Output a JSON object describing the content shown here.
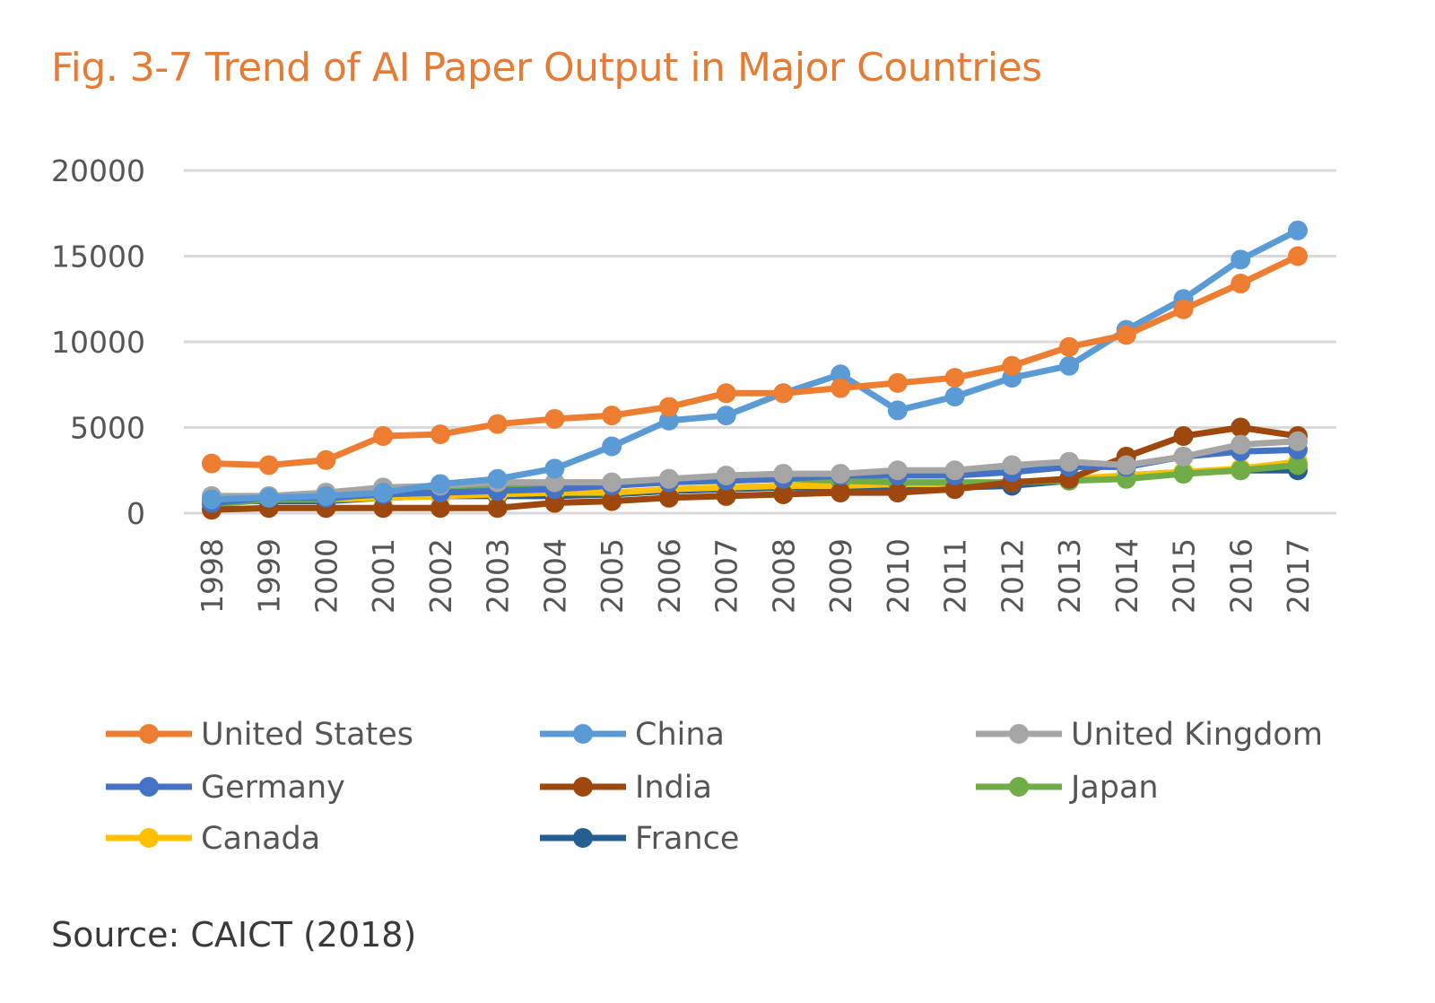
{
  "title": "Fig. 3-7 Trend of AI Paper Output in Major Countries",
  "source": "Source: CAICT (2018)",
  "chart_data": {
    "type": "line",
    "title": "Fig. 3-7 Trend of AI Paper Output in Major Countries",
    "xlabel": "",
    "ylabel": "",
    "x": [
      "1998",
      "1999",
      "2000",
      "2001",
      "2002",
      "2003",
      "2004",
      "2005",
      "2006",
      "2007",
      "2008",
      "2009",
      "2010",
      "2011",
      "2012",
      "2013",
      "2014",
      "2015",
      "2016",
      "2017"
    ],
    "ylim": [
      0,
      20000
    ],
    "yticks": [
      "0",
      "5000",
      "10000",
      "15000",
      "20000"
    ],
    "grid": true,
    "legend_position": "bottom",
    "series": [
      {
        "name": "United States",
        "color": "#ED7D31",
        "values": [
          2900,
          2800,
          3100,
          4500,
          4600,
          5200,
          5500,
          5700,
          6200,
          7000,
          7000,
          7300,
          7600,
          7900,
          8600,
          9700,
          10400,
          11900,
          13400,
          15000
        ]
      },
      {
        "name": "China",
        "color": "#5B9BD5",
        "values": [
          800,
          900,
          1000,
          1200,
          1700,
          2000,
          2600,
          3900,
          5400,
          5700,
          7000,
          8100,
          6000,
          6800,
          7900,
          8600,
          10700,
          12500,
          14800,
          16500
        ]
      },
      {
        "name": "United Kingdom",
        "color": "#A5A5A5",
        "values": [
          1000,
          1000,
          1200,
          1500,
          1600,
          1800,
          1800,
          1800,
          2000,
          2200,
          2300,
          2300,
          2500,
          2500,
          2800,
          3000,
          2800,
          3300,
          4000,
          4200
        ]
      },
      {
        "name": "Germany",
        "color": "#4472C4",
        "values": [
          600,
          900,
          900,
          1100,
          1200,
          1300,
          1400,
          1600,
          1800,
          1900,
          2000,
          2200,
          2200,
          2200,
          2400,
          2700,
          2700,
          3300,
          3600,
          3700
        ]
      },
      {
        "name": "India",
        "color": "#9E480E",
        "values": [
          200,
          300,
          300,
          300,
          300,
          300,
          600,
          700,
          900,
          1000,
          1100,
          1200,
          1200,
          1400,
          1800,
          2000,
          3300,
          4500,
          5000,
          4500
        ]
      },
      {
        "name": "Japan",
        "color": "#70AD47",
        "values": [
          500,
          800,
          800,
          1200,
          1500,
          1600,
          1700,
          1600,
          2000,
          1900,
          2000,
          1900,
          1800,
          1800,
          1800,
          1900,
          2000,
          2300,
          2500,
          2800
        ]
      },
      {
        "name": "Canada",
        "color": "#FFC000",
        "values": [
          700,
          800,
          800,
          900,
          1000,
          1100,
          1200,
          1200,
          1400,
          1500,
          1600,
          1600,
          1700,
          1700,
          1800,
          2000,
          2200,
          2400,
          2600,
          3000
        ]
      },
      {
        "name": "France",
        "color": "#255E91",
        "values": [
          700,
          700,
          700,
          900,
          1000,
          1000,
          1000,
          1100,
          1300,
          1400,
          1500,
          1500,
          1500,
          1500,
          1600,
          1900,
          2200,
          2400,
          2500,
          2500
        ]
      }
    ]
  }
}
